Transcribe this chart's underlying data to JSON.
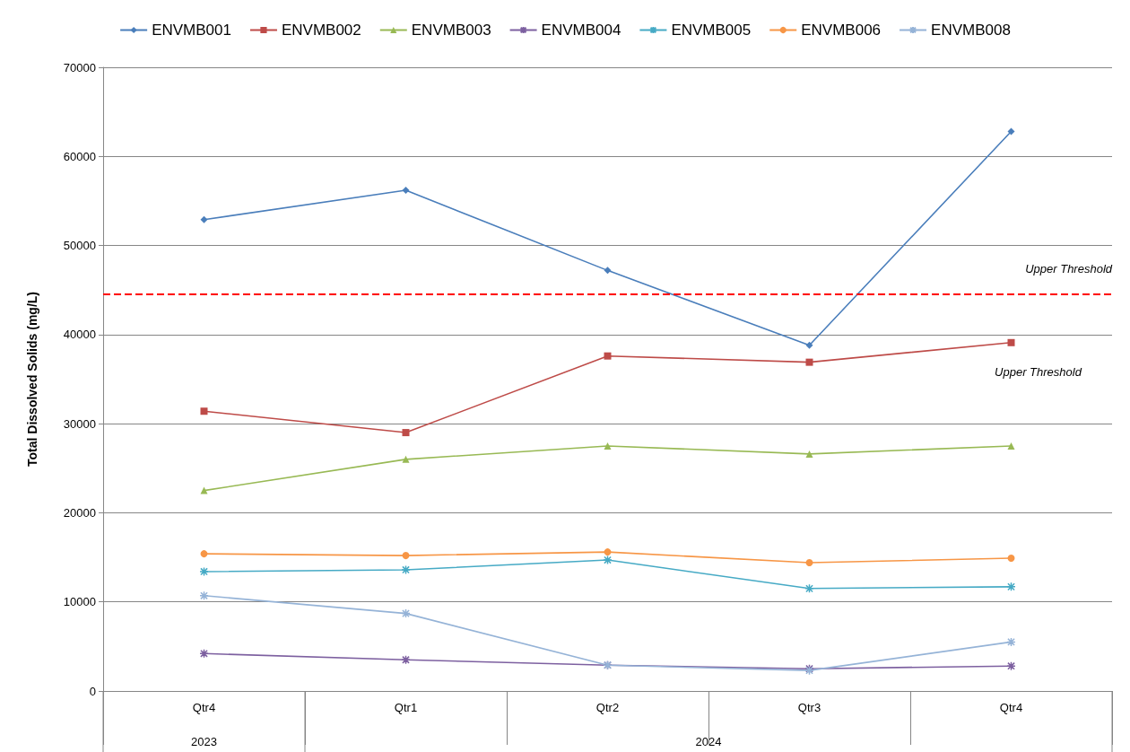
{
  "chart_data": {
    "type": "line",
    "ylabel": "Total Dissolved Solids (mg/L)",
    "categories": [
      "Qtr4",
      "Qtr1",
      "Qtr2",
      "Qtr3",
      "Qtr4"
    ],
    "series": [
      {
        "name": "ENVMB001",
        "color": "#4a7ebb",
        "marker": "diamond",
        "values": [
          52900,
          56200,
          47200,
          38800,
          62800
        ]
      },
      {
        "name": "ENVMB002",
        "color": "#be4b48",
        "marker": "square",
        "values": [
          31400,
          29000,
          37600,
          36900,
          39100
        ]
      },
      {
        "name": "ENVMB003",
        "color": "#98b954",
        "marker": "triangle",
        "values": [
          22500,
          26000,
          27500,
          26600,
          27500
        ]
      },
      {
        "name": "ENVMB004",
        "color": "#7d60a0",
        "marker": "cross",
        "values": [
          4200,
          3500,
          2900,
          2500,
          2800
        ]
      },
      {
        "name": "ENVMB005",
        "color": "#46aac5",
        "marker": "cross",
        "values": [
          13400,
          13600,
          14700,
          11500,
          11700
        ]
      },
      {
        "name": "ENVMB006",
        "color": "#f79646",
        "marker": "circle",
        "values": [
          15400,
          15200,
          15600,
          14400,
          14900
        ]
      },
      {
        "name": "ENVMB008",
        "color": "#95b3d7",
        "marker": "cross",
        "values": [
          10700,
          8700,
          2900,
          2300,
          5500
        ]
      }
    ],
    "ylim": [
      0,
      70000
    ],
    "yticks": [
      0,
      10000,
      20000,
      30000,
      40000,
      50000,
      60000,
      70000
    ],
    "grid": "y",
    "legend": "top",
    "ref_lines": [
      {
        "axis": "y",
        "value": 44500,
        "label": "Upper Threshold",
        "color": "#ff0000",
        "line_style": "dashed"
      }
    ],
    "annotations": [
      "Upper Threshold",
      "2023",
      "2024"
    ]
  }
}
